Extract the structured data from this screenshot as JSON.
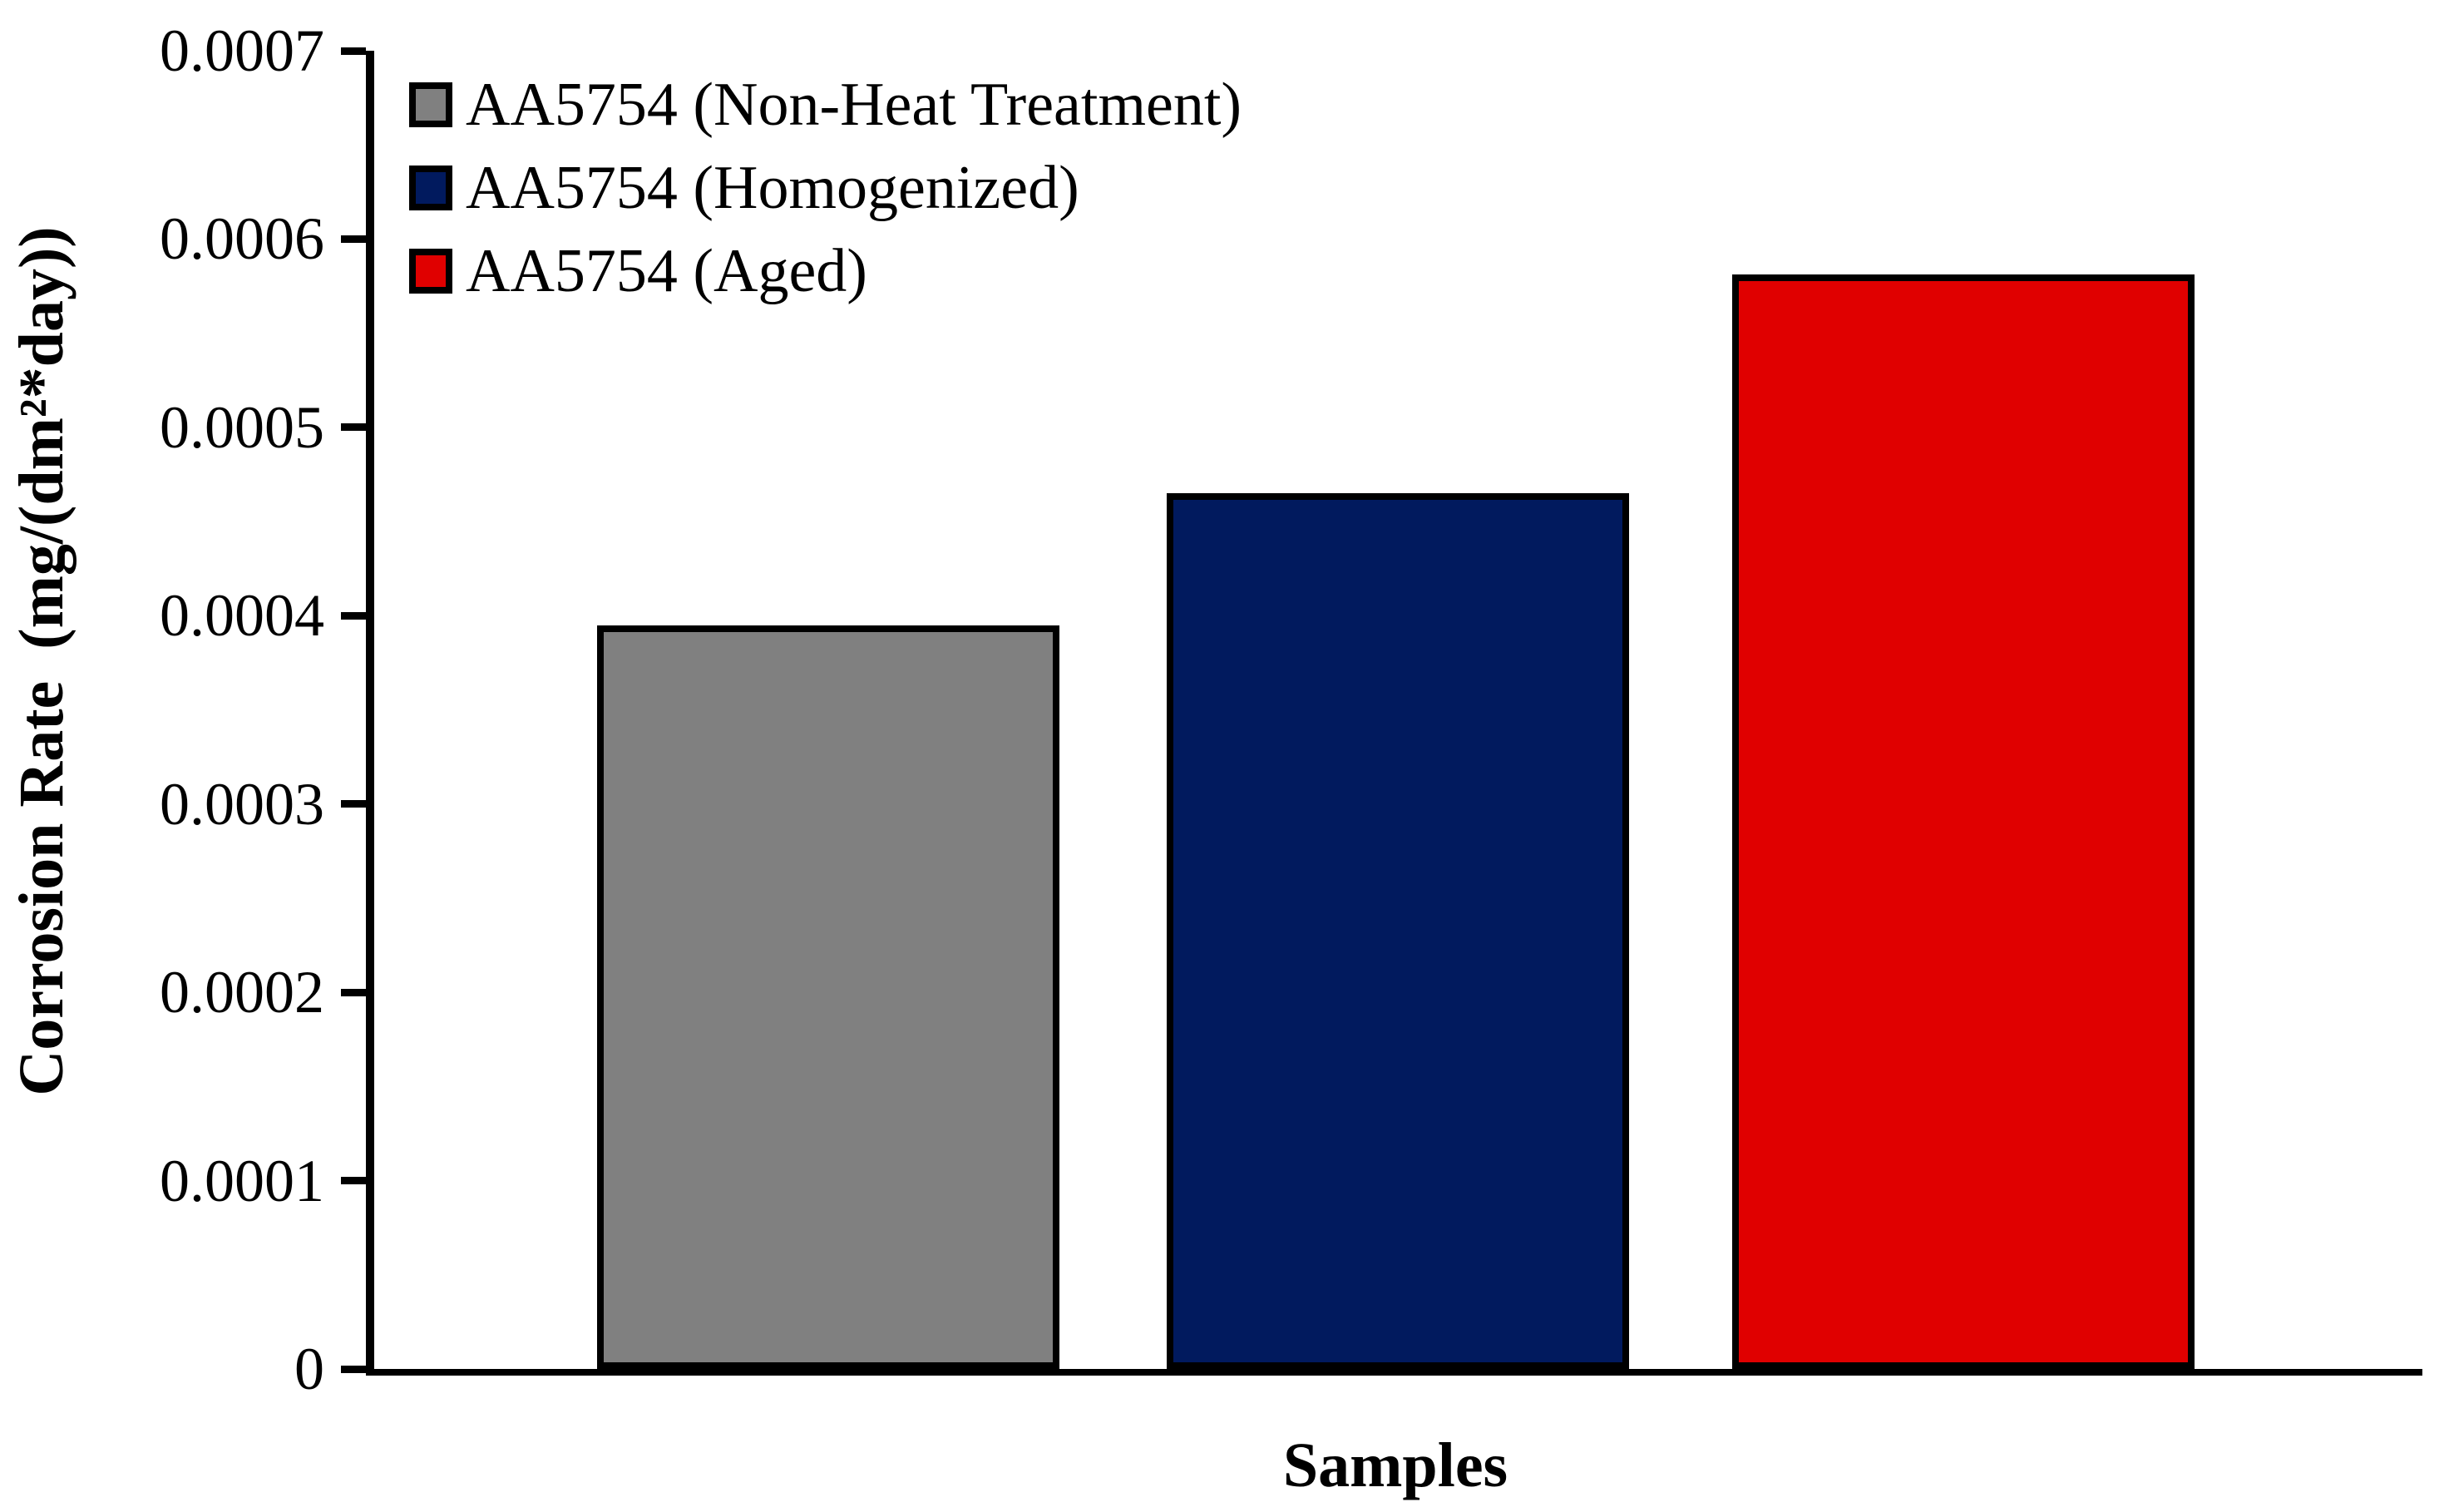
{
  "chart_data": {
    "type": "bar",
    "title": "",
    "xlabel": "Samples",
    "ylabel": "Corrosion Rate  (mg/(dm²*day))",
    "categories": [
      "AA5754 (Non-Heat Treatment)",
      "AA5754 (Homogenized)",
      "AA5754 (Aged)"
    ],
    "values": [
      0.000395,
      0.000465,
      0.000581
    ],
    "bar_colors": [
      "#808080",
      "#011a5e",
      "#e00000"
    ],
    "bar_border_color": "#000000",
    "axis_color": "#000000",
    "ylim": [
      0,
      0.0007
    ],
    "ytick_interval": 0.0001,
    "ytick_labels": [
      "0",
      "0.0001",
      "0.0002",
      "0.0003",
      "0.0004",
      "0.0005",
      "0.0006",
      "0.0007"
    ],
    "grid": false,
    "legend": {
      "position": "top-left",
      "entries": [
        {
          "label": "AA5754 (Non-Heat Treatment)",
          "color": "#808080"
        },
        {
          "label": "AA5754 (Homogenized)",
          "color": "#011a5e"
        },
        {
          "label": "AA5754 (Aged)",
          "color": "#e00000"
        }
      ]
    }
  }
}
